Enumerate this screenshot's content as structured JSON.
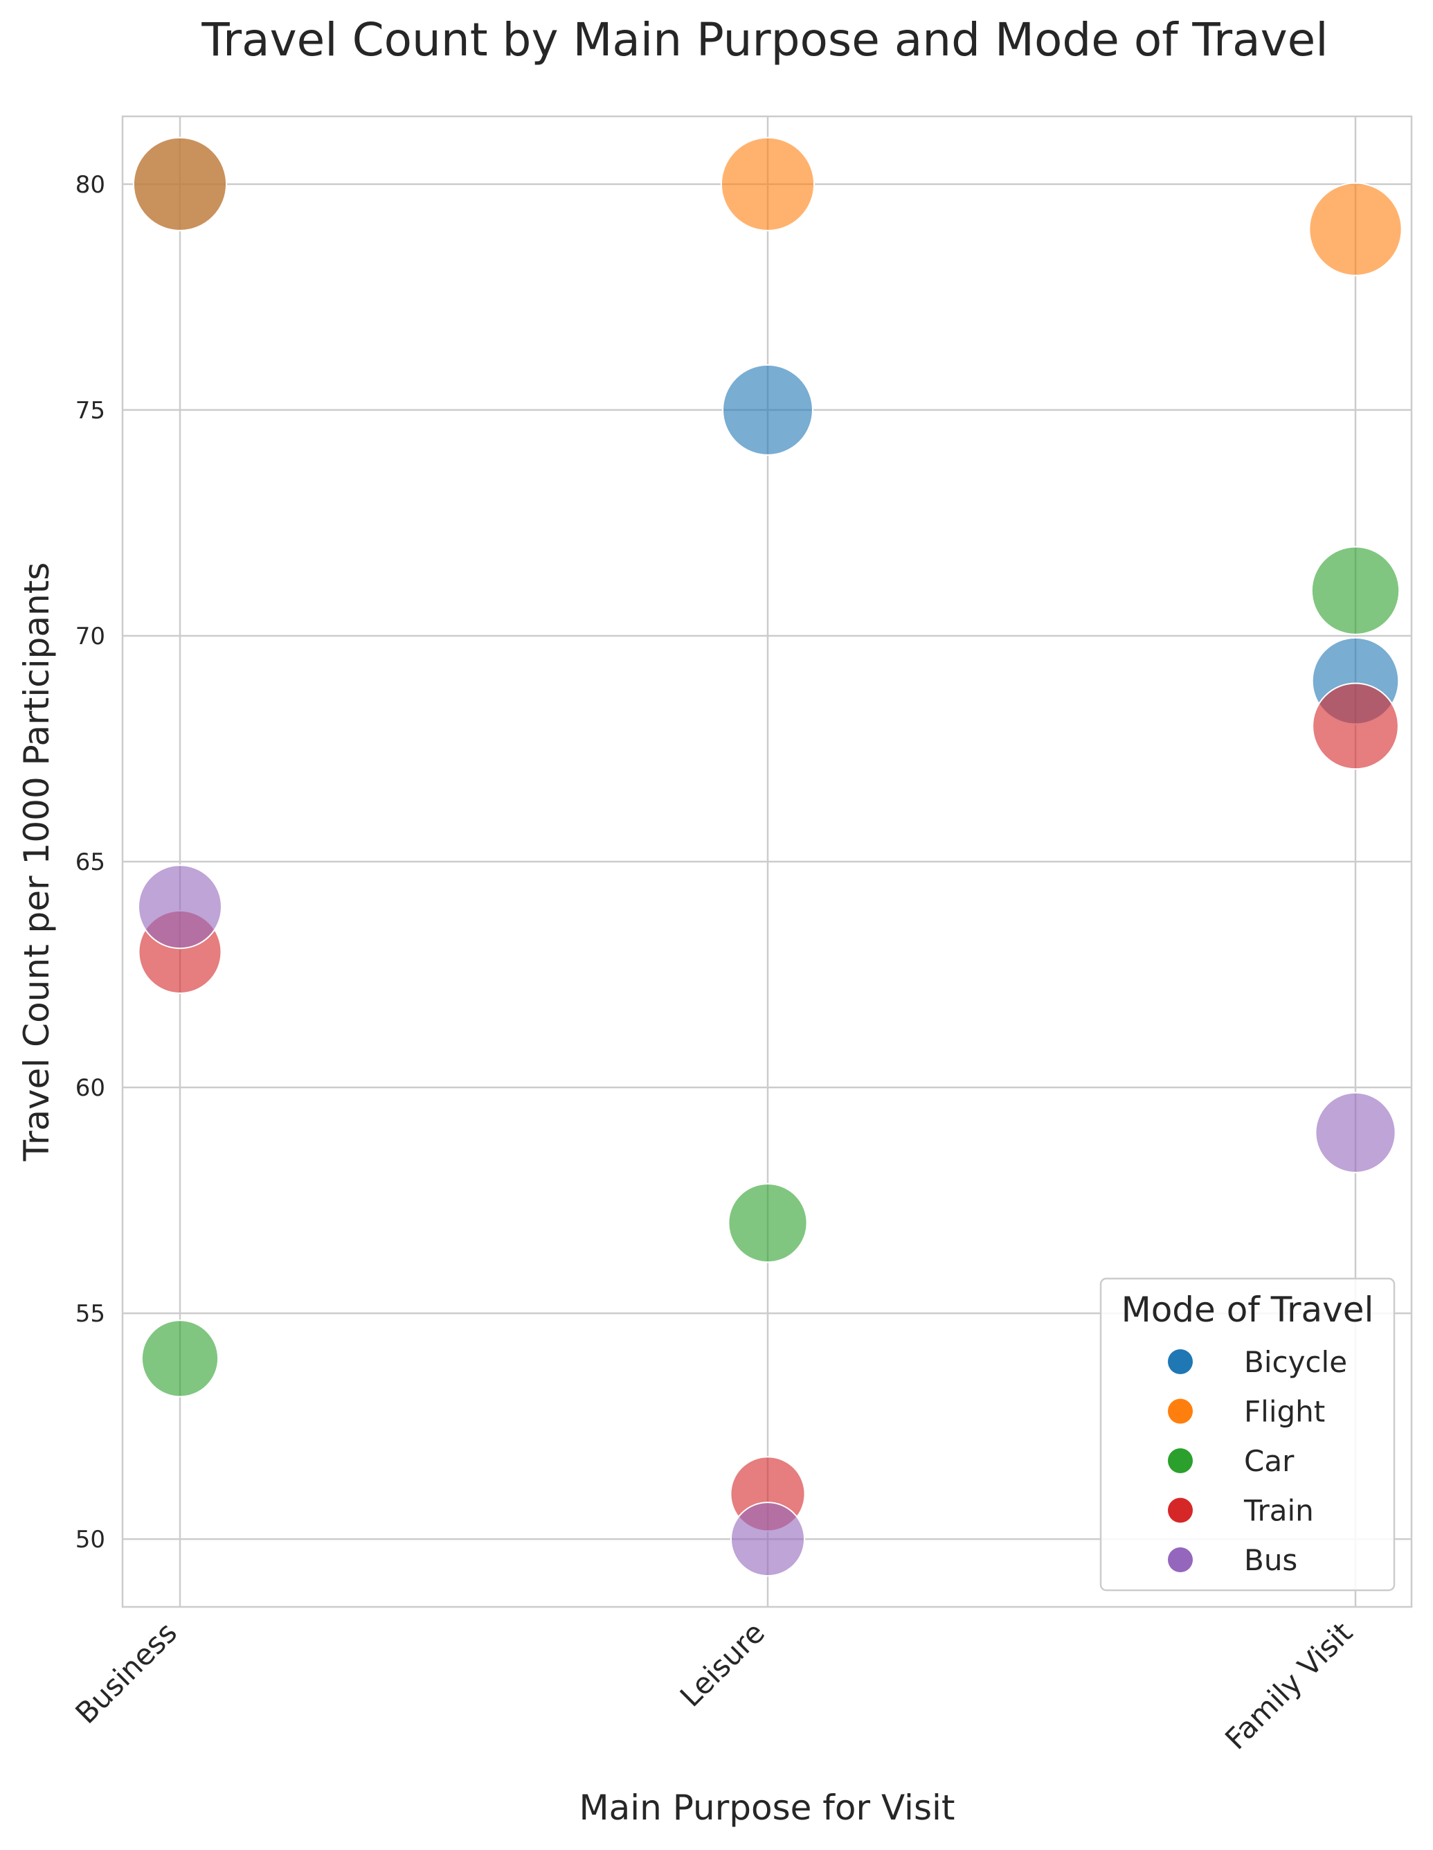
{
  "chart_data": {
    "type": "scatter",
    "title": "Travel Count by Main Purpose and Mode of Travel",
    "xlabel": "Main Purpose for Visit",
    "ylabel": "Travel Count per 1000 Participants",
    "categories": [
      "Business",
      "Leisure",
      "Family Visit"
    ],
    "ylim": [
      48.5,
      81.5
    ],
    "yticks": [
      50,
      55,
      60,
      65,
      70,
      75,
      80
    ],
    "grid": true,
    "legend": {
      "title": "Mode of Travel",
      "placement": "bottom-right"
    },
    "series": [
      {
        "name": "Bicycle",
        "color": "#1f77b4",
        "values": [
          80,
          75,
          69
        ]
      },
      {
        "name": "Flight",
        "color": "#ff7f0e",
        "values": [
          80,
          80,
          79
        ]
      },
      {
        "name": "Car",
        "color": "#2ca02c",
        "values": [
          54,
          57,
          71
        ]
      },
      {
        "name": "Train",
        "color": "#d62728",
        "values": [
          63,
          51,
          68
        ]
      },
      {
        "name": "Bus",
        "color": "#9467bd",
        "values": [
          64,
          50,
          59
        ]
      }
    ]
  }
}
